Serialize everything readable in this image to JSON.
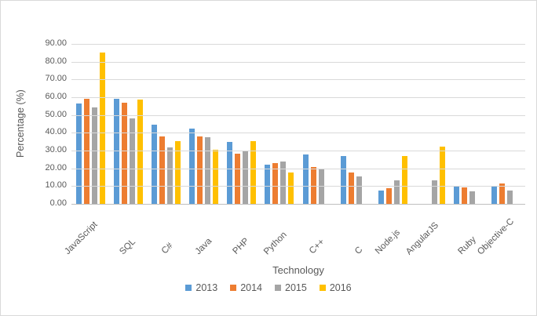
{
  "window": {
    "background": "#FFFFFF",
    "border_color": "#D9D9D9"
  },
  "chart_data": {
    "type": "bar",
    "title": "",
    "xlabel": "Technology",
    "ylabel": "Percentage (%)",
    "ylim": [
      0,
      90
    ],
    "ytick_step": 10,
    "y_ticks": [
      "0.00",
      "10.00",
      "20.00",
      "30.00",
      "40.00",
      "50.00",
      "60.00",
      "70.00",
      "80.00",
      "90.00"
    ],
    "grid": true,
    "legend_position": "bottom",
    "categories": [
      "JavaScript",
      "SQL",
      "C#",
      "Java",
      "PHP",
      "Python",
      "C++",
      "C",
      "Node.js",
      "AngularJS",
      "Ruby",
      "Objective-C"
    ],
    "series": [
      {
        "name": "2013",
        "color": "#5B9BD5",
        "values": [
          56.5,
          59.3,
          44.6,
          42.5,
          34.8,
          21.9,
          27.6,
          27.1,
          7.4,
          0,
          9.8,
          10.3
        ]
      },
      {
        "name": "2014",
        "color": "#ED7D31",
        "values": [
          58.9,
          57.0,
          37.8,
          37.8,
          28.4,
          23.0,
          20.7,
          17.5,
          9.0,
          0,
          9.4,
          11.3
        ]
      },
      {
        "name": "2015",
        "color": "#A5A5A5",
        "values": [
          54.4,
          48.0,
          31.6,
          37.4,
          29.7,
          23.8,
          20.0,
          15.6,
          13.3,
          13.3,
          7.2,
          7.5
        ]
      },
      {
        "name": "2016",
        "color": "#FFC000",
        "values": [
          85.3,
          58.8,
          35.2,
          30.3,
          35.4,
          17.8,
          0,
          0,
          26.9,
          32.0,
          0,
          0
        ]
      }
    ],
    "styles": {
      "gridline_color": "#D9D9D9",
      "axis_line_color": "#BFBFBF",
      "text_color": "#595959"
    }
  }
}
